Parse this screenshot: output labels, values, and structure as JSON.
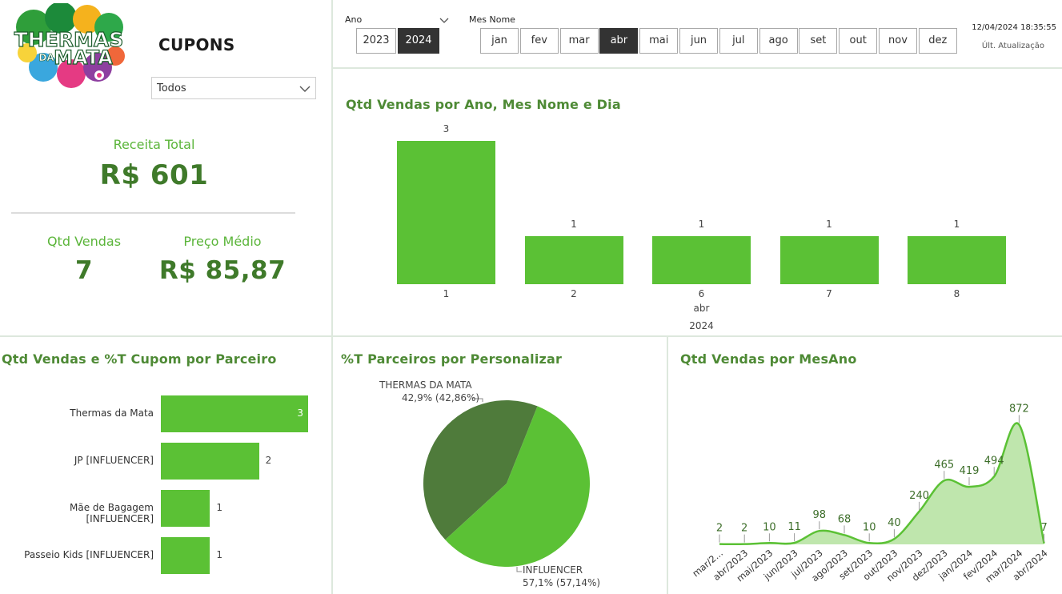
{
  "logo": {
    "line1": "THERMAS",
    "line2": "DA",
    "line3": "MATA"
  },
  "page_title": "CUPONS",
  "coupon_filter": {
    "value": "Todos"
  },
  "kpis": {
    "revenue_label": "Receita Total",
    "revenue_value": "R$ 601",
    "qty_label": "Qtd Vendas",
    "qty_value": "7",
    "avg_label": "Preço Médio",
    "avg_value": "R$ 85,87"
  },
  "year_slicer": {
    "title": "Ano",
    "options": [
      "2023",
      "2024"
    ],
    "selected": "2024"
  },
  "month_slicer": {
    "title": "Mes Nome",
    "options": [
      "jan",
      "fev",
      "mar",
      "abr",
      "mai",
      "jun",
      "jul",
      "ago",
      "set",
      "out",
      "nov",
      "dez"
    ],
    "selected": "abr"
  },
  "update": {
    "timestamp": "12/04/2024 18:35:55",
    "label": "Últ. Atualização"
  },
  "colors": {
    "bar": "#5bc135",
    "pie_dark": "#4f7b3b",
    "title_green": "#4e8a35",
    "area_fill": "#bfe6ad",
    "area_line": "#5bc135"
  },
  "chart_data": [
    {
      "type": "bar",
      "title": "Qtd Vendas por Ano, Mes Nome e Dia",
      "categories": [
        "1",
        "2",
        "6",
        "7",
        "8"
      ],
      "values": [
        3,
        1,
        1,
        1,
        1
      ],
      "x_group_month": "abr",
      "x_group_year": "2024",
      "ylim": [
        0,
        3
      ]
    },
    {
      "type": "bar",
      "orientation": "horizontal",
      "title": "Qtd Vendas e %T Cupom por Parceiro",
      "categories": [
        "Thermas da Mata",
        "JP [INFLUENCER]",
        "Mãe de Bagagem [INFLUENCER]",
        "Passeio Kids [INFLUENCER]"
      ],
      "values": [
        3,
        2,
        1,
        1
      ]
    },
    {
      "type": "pie",
      "title": "%T Parceiros por Personalizar",
      "slices": [
        {
          "label": "THERMAS DA MATA",
          "value": 42.86,
          "text": "42,9% (42,86%)"
        },
        {
          "label": "INFLUENCER",
          "value": 57.14,
          "text": "57,1% (57,14%)"
        }
      ]
    },
    {
      "type": "area",
      "title": "Qtd Vendas por MesAno",
      "x": [
        "mar/2...",
        "abr/2023",
        "mai/2023",
        "jun/2023",
        "jul/2023",
        "ago/2023",
        "set/2023",
        "out/2023",
        "nov/2023",
        "dez/2023",
        "jan/2024",
        "fev/2024",
        "mar/2024",
        "abr/2024"
      ],
      "values": [
        2,
        2,
        10,
        11,
        98,
        68,
        10,
        40,
        240,
        465,
        419,
        494,
        872,
        7
      ],
      "labels": [
        "2",
        "2",
        "10",
        "11",
        "98",
        "68",
        "10",
        "40",
        "240",
        "465",
        "419",
        "494",
        "872",
        "7"
      ],
      "ylim": [
        0,
        1000
      ]
    }
  ]
}
